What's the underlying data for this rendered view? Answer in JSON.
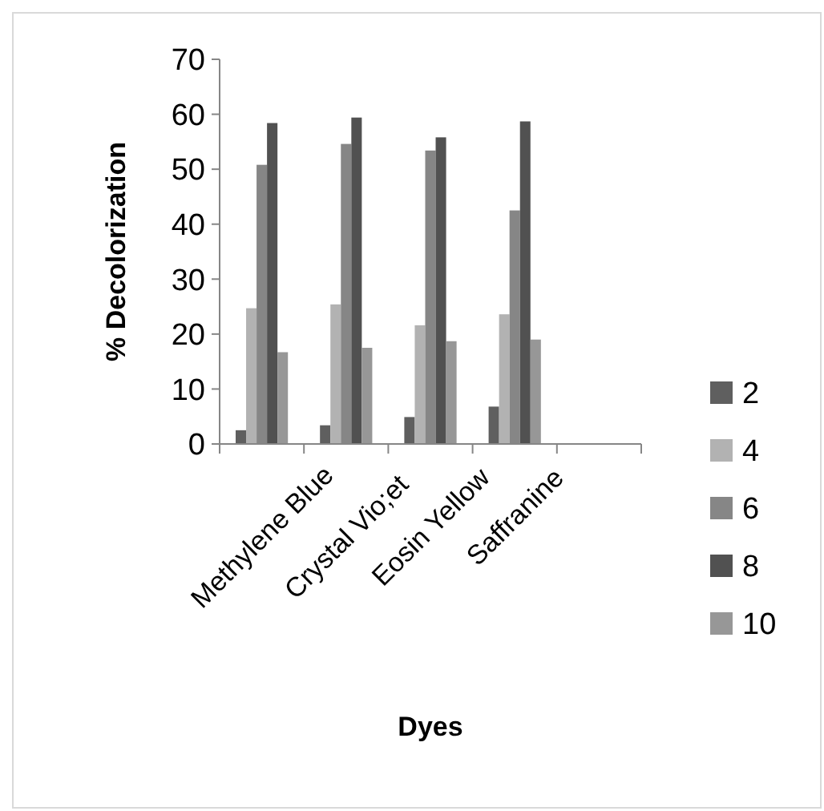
{
  "chart_data": {
    "type": "bar",
    "xlabel": "Dyes",
    "ylabel": "% Decolorization",
    "categories": [
      "Methylene Blue",
      "Crystal Vio;et",
      "Eosin Yellow",
      "Saffranine",
      null
    ],
    "series": [
      {
        "name": "2",
        "color": "#5f5f5f",
        "values": [
          2.5,
          3.4,
          4.9,
          6.8,
          null
        ]
      },
      {
        "name": "4",
        "color": "#b2b2b2",
        "values": [
          24.7,
          25.4,
          21.6,
          23.6,
          null
        ]
      },
      {
        "name": "6",
        "color": "#868686",
        "values": [
          50.8,
          54.6,
          53.4,
          42.5,
          null
        ]
      },
      {
        "name": "8",
        "color": "#515151",
        "values": [
          58.4,
          59.4,
          55.8,
          58.7,
          null
        ]
      },
      {
        "name": "10",
        "color": "#979797",
        "values": [
          16.7,
          17.5,
          18.7,
          19.0,
          null
        ]
      }
    ],
    "ylim": [
      0,
      70
    ],
    "yticks": [
      0,
      10,
      20,
      30,
      40,
      50,
      60,
      70
    ],
    "grid": false,
    "legend": "right"
  }
}
